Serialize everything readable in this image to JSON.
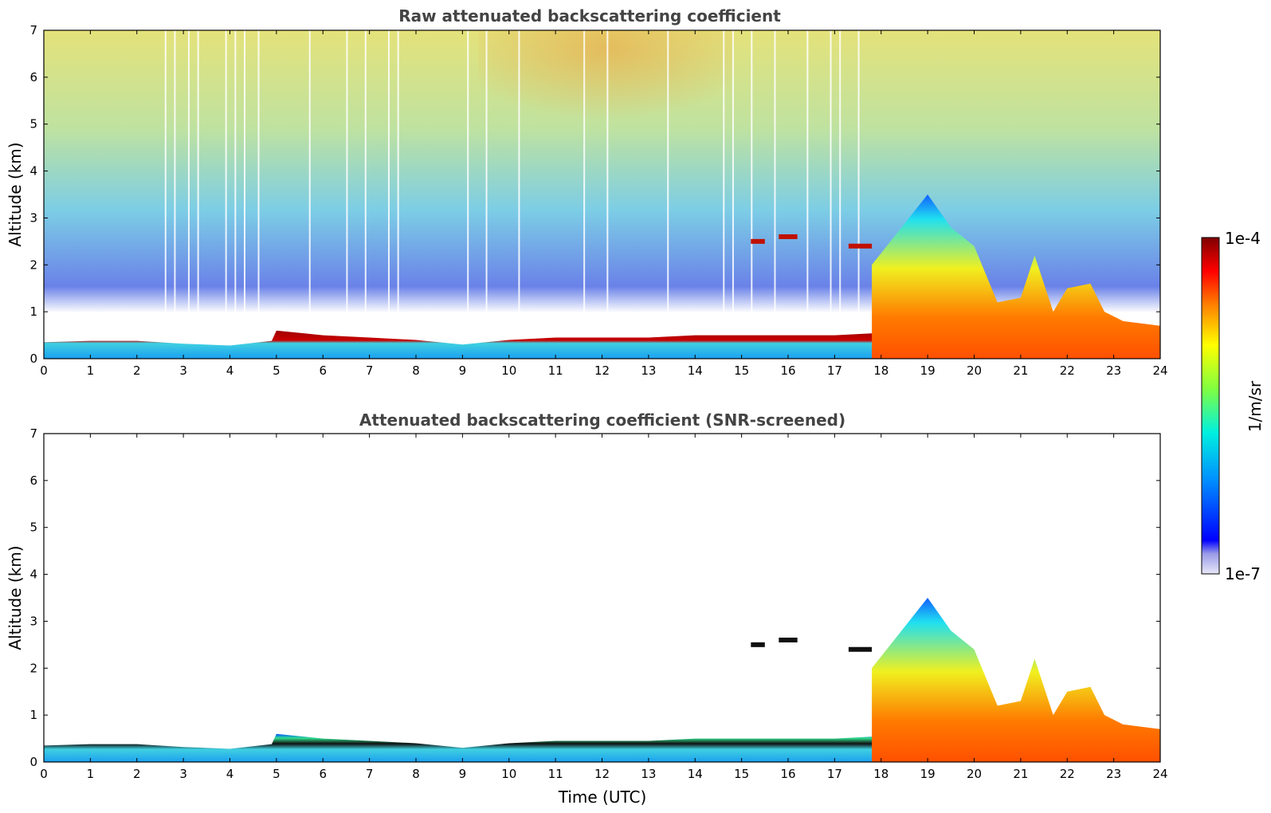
{
  "chart_data": [
    {
      "type": "heatmap",
      "title": "Raw attenuated backscattering coefficient",
      "xlabel": "",
      "ylabel": "Altitude (km)",
      "xlim": [
        0,
        24
      ],
      "ylim": [
        0,
        7
      ],
      "xticks": [
        "0",
        "1",
        "2",
        "3",
        "4",
        "5",
        "6",
        "7",
        "8",
        "9",
        "10",
        "11",
        "12",
        "13",
        "14",
        "15",
        "16",
        "17",
        "18",
        "19",
        "20",
        "21",
        "22",
        "23",
        "24"
      ],
      "yticks": [
        "0",
        "1",
        "2",
        "3",
        "4",
        "5",
        "6",
        "7"
      ],
      "boundary_layer_top_km": [
        [
          0,
          0.35
        ],
        [
          1,
          0.38
        ],
        [
          2,
          0.38
        ],
        [
          3,
          0.32
        ],
        [
          4,
          0.28
        ],
        [
          4.9,
          0.38
        ],
        [
          5,
          0.6
        ],
        [
          6,
          0.5
        ],
        [
          7,
          0.45
        ],
        [
          8,
          0.4
        ],
        [
          9,
          0.3
        ],
        [
          10,
          0.4
        ],
        [
          11,
          0.45
        ],
        [
          12,
          0.45
        ],
        [
          13,
          0.45
        ],
        [
          14,
          0.5
        ],
        [
          15,
          0.5
        ],
        [
          16,
          0.5
        ],
        [
          17,
          0.5
        ],
        [
          18,
          0.55
        ],
        [
          19,
          0.55
        ],
        [
          20,
          0.6
        ],
        [
          20.4,
          0.6
        ]
      ],
      "cloud_top_km": [
        [
          17.8,
          2.0
        ],
        [
          19.0,
          3.5
        ],
        [
          19.5,
          2.8
        ],
        [
          20.0,
          2.4
        ],
        [
          20.5,
          1.2
        ],
        [
          21.0,
          1.3
        ],
        [
          21.3,
          2.2
        ],
        [
          21.7,
          1.0
        ],
        [
          22.0,
          1.5
        ],
        [
          22.5,
          1.6
        ],
        [
          22.8,
          1.0
        ],
        [
          23.2,
          0.8
        ],
        [
          24,
          0.7
        ]
      ],
      "features": [
        {
          "x": [
            15.2,
            15.5
          ],
          "altitude": 2.5
        },
        {
          "x": [
            15.8,
            16.2
          ],
          "altitude": 2.6
        },
        {
          "x": [
            17.3,
            17.8
          ],
          "altitude": 2.4
        }
      ]
    },
    {
      "type": "heatmap",
      "title": "Attenuated backscattering coefficient (SNR-screened)",
      "xlabel": "Time (UTC)",
      "ylabel": "Altitude (km)",
      "xlim": [
        0,
        24
      ],
      "ylim": [
        0,
        7
      ],
      "xticks": [
        "0",
        "1",
        "2",
        "3",
        "4",
        "5",
        "6",
        "7",
        "8",
        "9",
        "10",
        "11",
        "12",
        "13",
        "14",
        "15",
        "16",
        "17",
        "18",
        "19",
        "20",
        "21",
        "22",
        "23",
        "24"
      ],
      "yticks": [
        "0",
        "1",
        "2",
        "3",
        "4",
        "5",
        "6",
        "7"
      ]
    }
  ],
  "colorbar": {
    "label": "1/m/sr",
    "max_label": "1e-4",
    "min_label": "1e-7",
    "colors": [
      "#e8e8f8",
      "#0000ff",
      "#00a0ff",
      "#00ffd0",
      "#80ff40",
      "#ffff00",
      "#ff8000",
      "#ff0000",
      "#800000"
    ]
  }
}
